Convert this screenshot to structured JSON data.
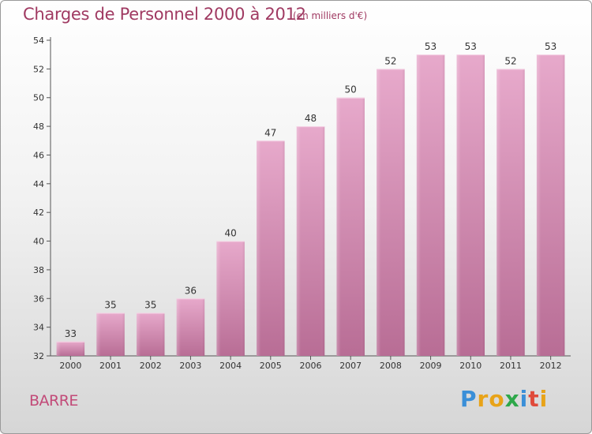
{
  "title": "Charges de Personnel 2000 à 2012",
  "subtitle": "(en milliers d'€)",
  "footer_label": "BARRE",
  "logo": {
    "letters": [
      "P",
      "r",
      "o",
      "x",
      "i",
      "t",
      "i"
    ],
    "colors": [
      "#3a8fd8",
      "#e8a318",
      "#e8a318",
      "#2ea84a",
      "#3a8fd8",
      "#e04a3a",
      "#e8a318"
    ]
  },
  "colors": {
    "bar": "#d98fb8",
    "text_accent": "#a03a62"
  },
  "chart_data": {
    "type": "bar",
    "title": "Charges de Personnel 2000 à 2012",
    "subtitle": "(en milliers d'€)",
    "categories": [
      "2000",
      "2001",
      "2002",
      "2003",
      "2004",
      "2005",
      "2006",
      "2007",
      "2008",
      "2009",
      "2010",
      "2011",
      "2012"
    ],
    "values": [
      33,
      35,
      35,
      36,
      40,
      47,
      48,
      50,
      52,
      53,
      53,
      52,
      53
    ],
    "ylim": [
      32,
      54
    ],
    "yticks": [
      32,
      34,
      36,
      38,
      40,
      42,
      44,
      46,
      48,
      50,
      52,
      54
    ],
    "grid": false,
    "data_labels": true
  }
}
